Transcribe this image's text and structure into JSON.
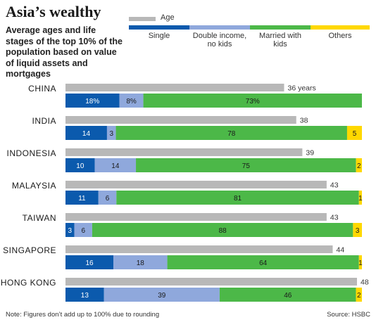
{
  "title": "Asia’s wealthy",
  "subtitle": "Average ages and life stages of the top 10% of the population based on value of liquid assets and mortgages",
  "legend": {
    "age": "Age",
    "segments": [
      {
        "label": "Single",
        "color": "#0b5aad"
      },
      {
        "label": "Double income, no kids",
        "color": "#8fa8dc"
      },
      {
        "label": "Married with kids",
        "color": "#4cb848"
      },
      {
        "label": "Others",
        "color": "#ffd800"
      }
    ],
    "age_color": "#b8b8b8"
  },
  "footer": {
    "note": "Note: Figures don’t add up to 100% due to rounding",
    "source": "Source: HSBC"
  },
  "chart_data": {
    "type": "bar",
    "categories": [
      "CHINA",
      "INDIA",
      "INDONESIA",
      "MALAYSIA",
      "TAIWAN",
      "SINGAPORE",
      "HONG KONG"
    ],
    "age": {
      "name": "Age",
      "values": [
        36,
        38,
        39,
        43,
        43,
        44,
        48
      ],
      "labels": [
        "36 years",
        "38",
        "39",
        "43",
        "43",
        "44",
        "48"
      ],
      "scale_max": 48
    },
    "series": [
      {
        "name": "Single",
        "values": [
          18,
          14,
          10,
          11,
          3,
          16,
          13
        ],
        "labels": [
          "18%",
          "14",
          "10",
          "11",
          "3",
          "16",
          "13"
        ]
      },
      {
        "name": "Double income, no kids",
        "values": [
          8,
          3,
          14,
          6,
          6,
          18,
          39
        ],
        "labels": [
          "8%",
          "3",
          "14",
          "6",
          "6",
          "18",
          "39"
        ]
      },
      {
        "name": "Married with kids",
        "values": [
          73,
          78,
          75,
          81,
          88,
          64,
          46
        ],
        "labels": [
          "73%",
          "78",
          "75",
          "81",
          "88",
          "64",
          "46"
        ]
      },
      {
        "name": "Others",
        "values": [
          0,
          5,
          2,
          1,
          3,
          1,
          2
        ],
        "labels": [
          "",
          "5",
          "2",
          "1",
          "3",
          "1",
          "2"
        ]
      }
    ]
  }
}
